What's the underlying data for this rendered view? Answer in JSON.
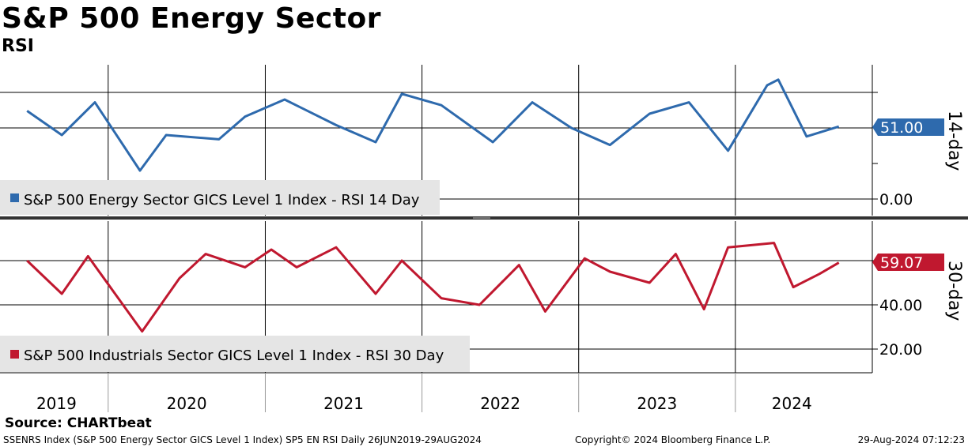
{
  "header": {
    "title": "S&P 500 Energy Sector",
    "subtitle": "RSI"
  },
  "chart_data": [
    {
      "type": "line",
      "panel": "top",
      "series": [
        {
          "name": "S&P 500 Energy Sector GICS Level 1 Index - RSI 14 Day",
          "color": "#2e6aad",
          "x": [
            "2019-06-26",
            "2019-09-15",
            "2019-12-01",
            "2020-03-15",
            "2020-05-15",
            "2020-09-15",
            "2020-11-15",
            "2021-02-15",
            "2021-06-15",
            "2021-09-15",
            "2021-11-15",
            "2022-02-15",
            "2022-06-15",
            "2022-09-15",
            "2022-12-15",
            "2023-03-15",
            "2023-06-15",
            "2023-09-15",
            "2023-12-15",
            "2024-03-15",
            "2024-04-10",
            "2024-06-15",
            "2024-08-29"
          ],
          "values": [
            62,
            45,
            68,
            20,
            45,
            42,
            58,
            70,
            52,
            40,
            74,
            66,
            40,
            68,
            50,
            38,
            60,
            68,
            34,
            80,
            84,
            44,
            51
          ]
        }
      ],
      "ylim": [
        0,
        100
      ],
      "y_ticks": [
        "0.00"
      ],
      "last_value": "51.00",
      "axis_label": "14-day",
      "grid": true,
      "legend": "bottom-left"
    },
    {
      "type": "line",
      "panel": "bottom",
      "series": [
        {
          "name": "S&P 500 Industrials Sector GICS Level 1 Index - RSI 30 Day",
          "color": "#c0182f",
          "x": [
            "2019-06-26",
            "2019-09-15",
            "2019-11-15",
            "2020-03-20",
            "2020-06-15",
            "2020-08-15",
            "2020-11-15",
            "2021-01-15",
            "2021-03-15",
            "2021-06-15",
            "2021-09-15",
            "2021-11-15",
            "2022-02-15",
            "2022-05-15",
            "2022-08-15",
            "2022-10-15",
            "2023-01-15",
            "2023-03-15",
            "2023-06-15",
            "2023-08-15",
            "2023-10-20",
            "2023-12-15",
            "2024-03-31",
            "2024-05-15",
            "2024-07-15",
            "2024-08-29"
          ],
          "values": [
            60,
            45,
            62,
            28,
            52,
            63,
            57,
            65,
            57,
            66,
            45,
            60,
            43,
            40,
            58,
            37,
            61,
            55,
            50,
            63,
            38,
            66,
            68,
            48,
            54,
            59.07
          ]
        }
      ],
      "ylim": [
        10,
        80
      ],
      "y_ticks": [
        "20.00",
        "40.00"
      ],
      "last_value": "59.07",
      "axis_label": "30-day",
      "grid": true,
      "legend": "bottom-left"
    }
  ],
  "x_axis": {
    "labels": [
      "2019",
      "2020",
      "2021",
      "2022",
      "2023",
      "2024"
    ]
  },
  "footer": {
    "source": "Source: CHARTbeat",
    "ticker_info": "SSENRS Index (S&P 500 Energy Sector GICS Level 1 Index) SP5 EN RSI  Daily 26JUN2019-29AUG2024",
    "copyright": "Copyright© 2024 Bloomberg Finance L.P.",
    "timestamp": "29-Aug-2024 07:12:23"
  }
}
